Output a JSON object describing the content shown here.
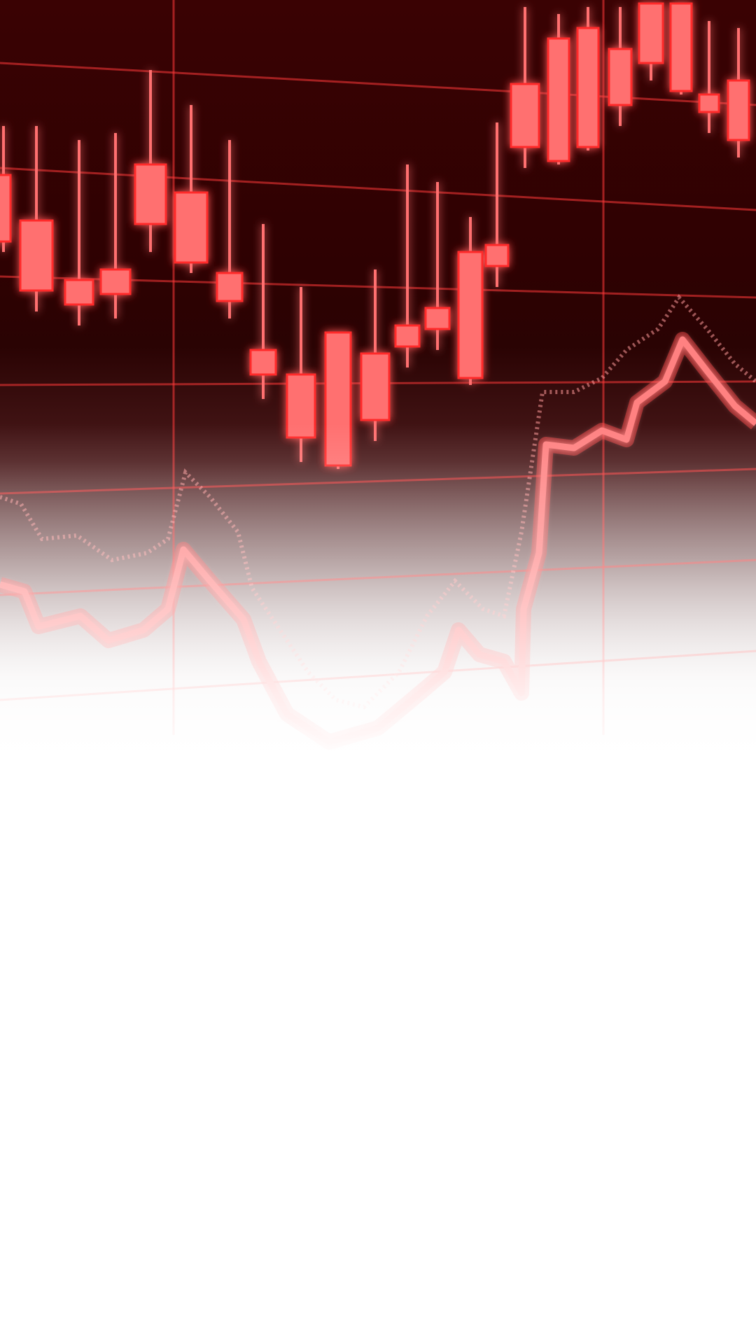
{
  "hero": {
    "icon": "stock-chart-icon",
    "colors": {
      "background_dark": "#2e0102",
      "candle_fill": "#ff7070",
      "candle_glow": "#ff2a2a",
      "line": "#ff6a6a",
      "grid": "#ff3a3a"
    }
  }
}
